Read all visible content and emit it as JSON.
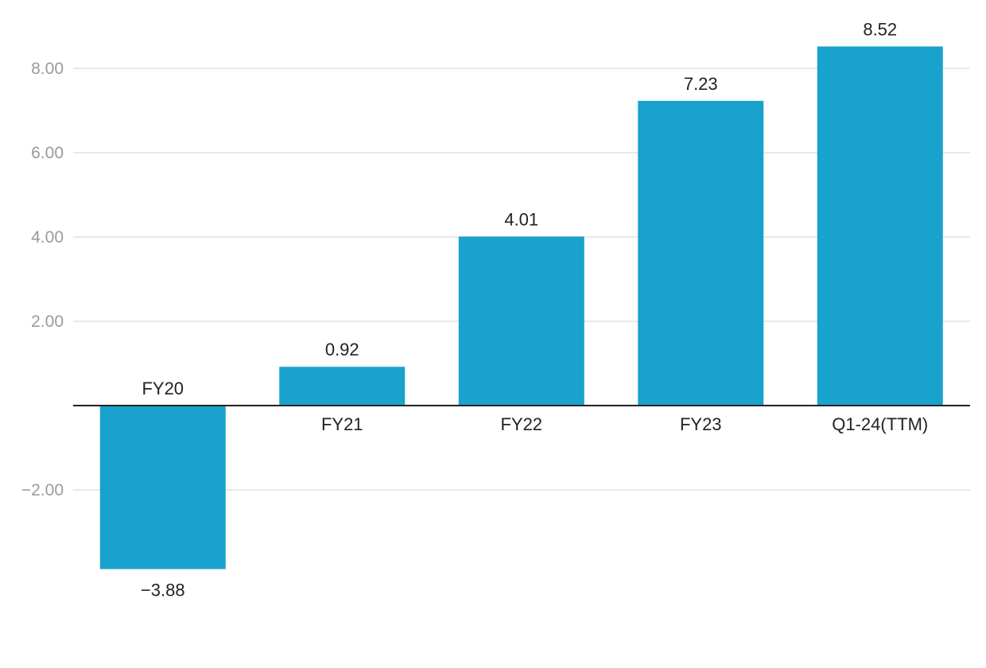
{
  "chart_data": {
    "type": "bar",
    "title": "",
    "xlabel": "",
    "ylabel": "",
    "categories": [
      "FY20",
      "FY21",
      "FY22",
      "FY23",
      "Q1-24(TTM)"
    ],
    "values": [
      -3.88,
      0.92,
      4.01,
      7.23,
      8.52
    ],
    "value_labels": [
      "−3.88",
      "0.92",
      "4.01",
      "7.23",
      "8.52"
    ],
    "ylim": [
      -4,
      8.8
    ],
    "y_ticks": [
      {
        "value": 8,
        "label": "8.00"
      },
      {
        "value": 6,
        "label": "6.00"
      },
      {
        "value": 4,
        "label": "4.00"
      },
      {
        "value": 2,
        "label": "2.00"
      },
      {
        "value": -2,
        "label": "−2.00"
      }
    ],
    "grid": true,
    "legend": "none",
    "colors": {
      "bar": "#19a2cd",
      "grid": "#e2e2e2",
      "zero_line": "#222222",
      "y_tick_text": "#9a9a9a",
      "label_text": "#222222"
    }
  }
}
